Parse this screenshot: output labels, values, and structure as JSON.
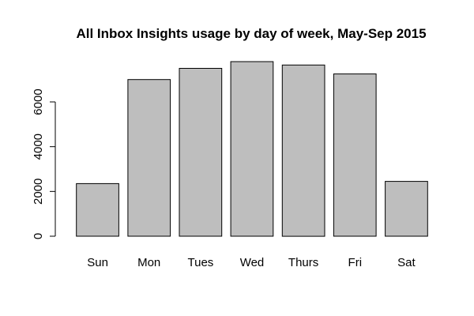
{
  "chart_data": {
    "type": "bar",
    "title": "All Inbox Insights usage by day of week, May-Sep 2015",
    "xlabel": "",
    "ylabel": "",
    "categories": [
      "Sun",
      "Mon",
      "Tues",
      "Wed",
      "Thurs",
      "Fri",
      "Sat"
    ],
    "values": [
      2350,
      7000,
      7500,
      7800,
      7650,
      7250,
      2450
    ],
    "ylim": [
      0,
      7800
    ],
    "yticks": [
      0,
      2000,
      4000,
      6000
    ],
    "ytick_labels": [
      "0",
      "2000",
      "4000",
      "6000"
    ],
    "grid": false,
    "legend": "none",
    "colors": {
      "bar_fill": "#bebebe",
      "bar_stroke": "#000000"
    }
  }
}
